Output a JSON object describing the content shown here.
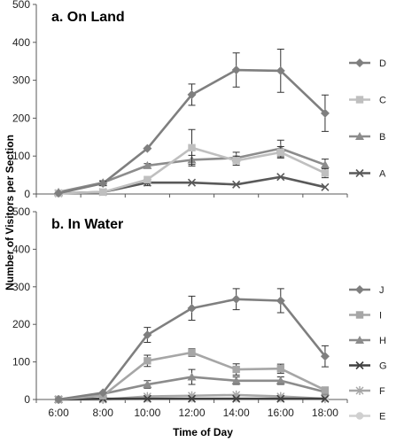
{
  "xlabel": "Time of Day",
  "ylabel": "Number of Visitors per Section",
  "chart_data": [
    {
      "type": "line",
      "title": "a. On Land",
      "x": [
        "6:00",
        "8:00",
        "10:00",
        "12:00",
        "14:00",
        "16:00",
        "18:00"
      ],
      "ylim": [
        0,
        500
      ],
      "yticks": [
        0,
        100,
        200,
        300,
        400,
        500
      ],
      "legend_position": "right",
      "series": [
        {
          "name": "D",
          "color": "#7f7f7f",
          "marker": "diamond",
          "values": [
            2,
            28,
            120,
            262,
            327,
            325,
            213
          ],
          "err": [
            0,
            6,
            0,
            28,
            45,
            57,
            48
          ]
        },
        {
          "name": "C",
          "color": "#bfbfbf",
          "marker": "square",
          "values": [
            2,
            5,
            38,
            122,
            88,
            110,
            55
          ],
          "err": [
            0,
            0,
            0,
            48,
            12,
            15,
            12
          ]
        },
        {
          "name": "B",
          "color": "#8c8c8c",
          "marker": "triangle",
          "values": [
            5,
            30,
            75,
            90,
            95,
            120,
            77
          ],
          "err": [
            0,
            5,
            5,
            12,
            15,
            22,
            15
          ]
        },
        {
          "name": "A",
          "color": "#595959",
          "marker": "x",
          "values": [
            2,
            5,
            30,
            30,
            25,
            45,
            18
          ],
          "err": [
            0,
            0,
            8,
            0,
            0,
            0,
            0
          ]
        }
      ]
    },
    {
      "type": "line",
      "title": "b. In Water",
      "x": [
        "6:00",
        "8:00",
        "10:00",
        "12:00",
        "14:00",
        "16:00",
        "18:00"
      ],
      "ylim": [
        0,
        500
      ],
      "yticks": [
        0,
        100,
        200,
        300,
        400,
        500
      ],
      "legend_position": "right",
      "series": [
        {
          "name": "J",
          "color": "#7f7f7f",
          "marker": "diamond",
          "values": [
            0,
            18,
            172,
            243,
            267,
            263,
            115
          ],
          "err": [
            0,
            0,
            20,
            32,
            28,
            32,
            28
          ]
        },
        {
          "name": "I",
          "color": "#a6a6a6",
          "marker": "square",
          "values": [
            0,
            10,
            103,
            125,
            80,
            82,
            25
          ],
          "err": [
            0,
            0,
            15,
            10,
            15,
            12,
            0
          ]
        },
        {
          "name": "H",
          "color": "#8c8c8c",
          "marker": "triangle",
          "values": [
            0,
            15,
            40,
            60,
            50,
            50,
            20
          ],
          "err": [
            0,
            0,
            10,
            20,
            10,
            10,
            0
          ]
        },
        {
          "name": "G",
          "color": "#404040",
          "marker": "x",
          "values": [
            0,
            2,
            2,
            2,
            2,
            2,
            2
          ],
          "err": [
            0,
            0,
            0,
            0,
            0,
            0,
            0
          ]
        },
        {
          "name": "F",
          "color": "#a6a6a6",
          "marker": "star",
          "values": [
            0,
            0,
            8,
            10,
            12,
            8,
            2
          ],
          "err": [
            0,
            0,
            0,
            0,
            0,
            0,
            0
          ]
        },
        {
          "name": "E",
          "color": "#d0d0d0",
          "marker": "circle",
          "values": [
            0,
            0,
            2,
            2,
            2,
            2,
            2
          ],
          "err": [
            0,
            0,
            0,
            0,
            0,
            0,
            0
          ]
        }
      ]
    }
  ]
}
